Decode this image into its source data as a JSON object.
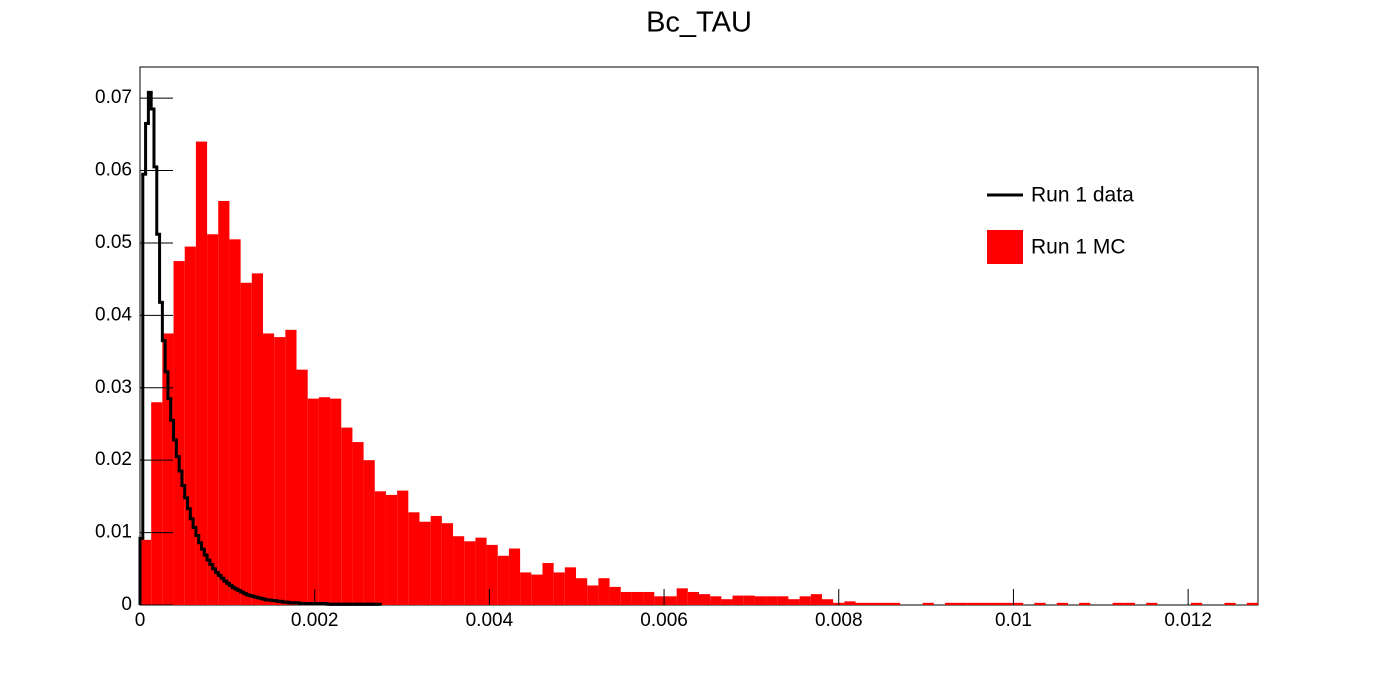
{
  "chart_data": {
    "type": "histogram",
    "title": "Bc_TAU",
    "xlim": [
      0,
      0.0128
    ],
    "ylim": [
      0,
      0.0743
    ],
    "xticks": [
      0,
      0.002,
      0.004,
      0.006,
      0.008,
      0.01,
      0.012
    ],
    "yticks": [
      0,
      0.01,
      0.02,
      0.03,
      0.04,
      0.05,
      0.06,
      0.07
    ],
    "legend": "top-right",
    "series": [
      {
        "name": "Run 1 data",
        "color": "#000000",
        "style": "step",
        "bins": [
          0,
          3.2e-05,
          6.4e-05,
          9.6e-05,
          0.000128,
          0.00016,
          0.000192,
          0.000224,
          0.000256,
          0.000288,
          0.00032,
          0.000352,
          0.000384,
          0.000416,
          0.000448,
          0.00048,
          0.000512,
          0.000544,
          0.000576,
          0.000608,
          0.00064,
          0.000672,
          0.000704,
          0.000736,
          0.000768,
          0.0008,
          0.000832,
          0.000864,
          0.000896,
          0.000928,
          0.00096,
          0.000992,
          0.001024,
          0.001056,
          0.001088,
          0.00112,
          0.001152,
          0.001184,
          0.001216,
          0.001248,
          0.00128,
          0.001312,
          0.001344,
          0.001376,
          0.001408,
          0.00144,
          0.001472,
          0.001504,
          0.001536,
          0.001568,
          0.0016,
          0.001632,
          0.001664,
          0.001696,
          0.001728,
          0.00176,
          0.001792,
          0.001824,
          0.001856,
          0.001888,
          0.00192,
          0.001952,
          0.001984,
          0.002016,
          0.002048,
          0.00208,
          0.002112,
          0.002144,
          0.002176,
          0.002208,
          0.00224,
          0.002272,
          0.002304,
          0.002336,
          0.002368,
          0.0024,
          0.002432,
          0.002464,
          0.002496,
          0.002528,
          0.00256,
          0.002592,
          0.002624,
          0.002656,
          0.002688,
          0.00272,
          0.002752
        ],
        "values": [
          0.0092,
          0.0595,
          0.0665,
          0.0708,
          0.0685,
          0.0605,
          0.0512,
          0.0418,
          0.0365,
          0.0322,
          0.0285,
          0.0255,
          0.0228,
          0.0205,
          0.0185,
          0.0165,
          0.0148,
          0.0133,
          0.0119,
          0.0107,
          0.0096,
          0.0086,
          0.0077,
          0.0069,
          0.0062,
          0.0056,
          0.005,
          0.0045,
          0.0041,
          0.0037,
          0.0033,
          0.003,
          0.0027,
          0.0024,
          0.0022,
          0.002,
          0.0018,
          0.0016,
          0.0014,
          0.0013,
          0.0012,
          0.0011,
          0.001,
          0.0009,
          0.0008,
          0.0007,
          0.0007,
          0.0006,
          0.0006,
          0.0005,
          0.0005,
          0.0004,
          0.0004,
          0.0003,
          0.0003,
          0.0003,
          0.0003,
          0.0002,
          0.0002,
          0.0002,
          0.0002,
          0.0002,
          0.0002,
          0.0002,
          0.0002,
          0.0002,
          0.0002,
          0.0001,
          0.0001,
          0.0001,
          0.0001,
          0.0001,
          0.0001,
          0.0001,
          0.0001,
          0.0001,
          0.0001,
          0.0001,
          0.0001,
          0.0001,
          0.0001,
          0.0001,
          0.0001,
          0.0001,
          0.0001,
          0.0001
        ]
      },
      {
        "name": "Run 1 MC",
        "color": "#ff0000",
        "style": "filled",
        "bins": [
          0,
          0.000128,
          0.000256,
          0.000384,
          0.000512,
          0.00064,
          0.000768,
          0.000896,
          0.001024,
          0.001152,
          0.00128,
          0.001408,
          0.001536,
          0.001664,
          0.001792,
          0.00192,
          0.002048,
          0.002176,
          0.002304,
          0.002432,
          0.00256,
          0.002688,
          0.002816,
          0.002944,
          0.003072,
          0.0032,
          0.003328,
          0.003456,
          0.003584,
          0.003712,
          0.00384,
          0.003968,
          0.004096,
          0.004224,
          0.004352,
          0.00448,
          0.004608,
          0.004736,
          0.004864,
          0.004992,
          0.00512,
          0.005248,
          0.005376,
          0.005504,
          0.005632,
          0.00576,
          0.005888,
          0.006016,
          0.006144,
          0.006272,
          0.0064,
          0.006528,
          0.006656,
          0.006784,
          0.006912,
          0.00704,
          0.007168,
          0.007296,
          0.007424,
          0.007552,
          0.00768,
          0.007808,
          0.007936,
          0.008064,
          0.008192,
          0.00832,
          0.008448,
          0.008576,
          0.008704,
          0.008832,
          0.00896,
          0.009088,
          0.009216,
          0.009344,
          0.009472,
          0.0096,
          0.009728,
          0.009856,
          0.009984,
          0.010112,
          0.01024,
          0.010368,
          0.010496,
          0.010624,
          0.010752,
          0.01088,
          0.011008,
          0.011136,
          0.011264,
          0.011392,
          0.01152,
          0.011648,
          0.011776,
          0.011904,
          0.012032,
          0.01216,
          0.012288,
          0.012416,
          0.012544,
          0.012672,
          0.0128
        ],
        "values": [
          0.009,
          0.028,
          0.0375,
          0.0475,
          0.0495,
          0.064,
          0.0512,
          0.0558,
          0.0505,
          0.0445,
          0.0458,
          0.0375,
          0.037,
          0.038,
          0.0325,
          0.0285,
          0.0287,
          0.0285,
          0.0245,
          0.0225,
          0.02,
          0.0157,
          0.0152,
          0.0158,
          0.0128,
          0.0115,
          0.0123,
          0.0113,
          0.0095,
          0.0088,
          0.0093,
          0.0083,
          0.0068,
          0.0078,
          0.0045,
          0.0042,
          0.0058,
          0.0045,
          0.0052,
          0.0037,
          0.0027,
          0.0037,
          0.0025,
          0.0018,
          0.0018,
          0.0018,
          0.0012,
          0.0012,
          0.0023,
          0.0018,
          0.0015,
          0.0012,
          0.0008,
          0.0013,
          0.0013,
          0.0012,
          0.0012,
          0.0012,
          0.0008,
          0.0012,
          0.0015,
          0.0008,
          0.0003,
          0.0005,
          0.0003,
          0.0003,
          0.0003,
          0.0003,
          0,
          0,
          0.0003,
          0,
          0.0003,
          0.0003,
          0.0003,
          0.0003,
          0.0003,
          0.0003,
          0.0003,
          0,
          0.0003,
          0,
          0.0003,
          0,
          0.0003,
          0,
          0,
          0.0003,
          0.0003,
          0,
          0.0003,
          0,
          0,
          0,
          0.0003,
          0,
          0,
          0.0003,
          0,
          0.0003
        ]
      }
    ]
  }
}
